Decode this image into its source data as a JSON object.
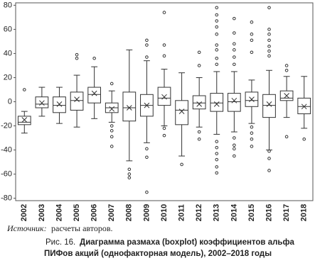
{
  "chart_data": {
    "type": "boxplot",
    "source_label": "Источник:",
    "source_text": "расчеты авторов.",
    "caption_label": "Рис. 16.",
    "caption_lines": [
      "Диаграмма размаха (boxplot) коэффициентов альфа",
      "ПИФов акций (однофакторная модель), 2002–2018 годы"
    ],
    "categories": [
      "2002",
      "2003",
      "2004",
      "2005",
      "2006",
      "2007",
      "2008",
      "2009",
      "2010",
      "2011",
      "2012",
      "2013",
      "2014",
      "2015",
      "2016",
      "2017",
      "2018"
    ],
    "boxes": [
      {
        "min": -26,
        "q1": -19,
        "median": -17,
        "q3": -12,
        "max": -8,
        "mean": -15,
        "outliers": [
          10
        ]
      },
      {
        "min": -12,
        "q1": -5,
        "median": -2,
        "q3": 4,
        "max": 12,
        "mean": -1,
        "outliers": []
      },
      {
        "min": -18,
        "q1": -9,
        "median": -3,
        "q3": 4,
        "max": 12,
        "mean": -2,
        "outliers": []
      },
      {
        "min": -21,
        "q1": -7,
        "median": 1,
        "q3": 8,
        "max": 22,
        "mean": 2,
        "outliers": [
          36,
          39
        ]
      },
      {
        "min": -14,
        "q1": -1,
        "median": 6,
        "q3": 12,
        "max": 29,
        "mean": 7,
        "outliers": [
          36
        ]
      },
      {
        "min": -17,
        "q1": -9,
        "median": -5,
        "q3": -1,
        "max": 9,
        "mean": -6,
        "outliers": [
          15,
          -20,
          -24,
          -29,
          -37
        ]
      },
      {
        "min": -49,
        "q1": -16,
        "median": -5,
        "q3": 8,
        "max": 43,
        "mean": -5,
        "outliers": [
          -56,
          -60,
          -63
        ]
      },
      {
        "min": -34,
        "q1": -12,
        "median": -3,
        "q3": 6,
        "max": 34,
        "mean": -3,
        "outliers": [
          51,
          47,
          37,
          -39,
          -46,
          -75
        ]
      },
      {
        "min": -20,
        "q1": -3,
        "median": 3,
        "q3": 12,
        "max": 27,
        "mean": 4,
        "outliers": [
          74,
          47,
          38,
          -22,
          -28
        ]
      },
      {
        "min": -45,
        "q1": -19,
        "median": -7,
        "q3": 1,
        "max": 24,
        "mean": -8,
        "outliers": [
          -52
        ]
      },
      {
        "min": -21,
        "q1": -6,
        "median": -1,
        "q3": 5,
        "max": 20,
        "mean": -2,
        "outliers": [
          41,
          30,
          -25,
          -31
        ]
      },
      {
        "min": -27,
        "q1": -8,
        "median": -1,
        "q3": 7,
        "max": 25,
        "mean": -2,
        "outliers": [
          78,
          72,
          67,
          62,
          56,
          47,
          43,
          36,
          31,
          -33,
          -38,
          -43,
          -48,
          -54,
          -59
        ]
      },
      {
        "min": -25,
        "q1": -8,
        "median": 0,
        "q3": 7,
        "max": 25,
        "mean": 1,
        "outliers": [
          69,
          57,
          48,
          43,
          37,
          31,
          -30,
          -36,
          -39,
          -45
        ]
      },
      {
        "min": -18,
        "q1": -4,
        "median": 1,
        "q3": 8,
        "max": 18,
        "mean": 2,
        "outliers": [
          66,
          56,
          51,
          41,
          -21,
          -26,
          -31,
          -37
        ]
      },
      {
        "min": -40,
        "q1": -13,
        "median": -3,
        "q3": 6,
        "max": 26,
        "mean": -2,
        "outliers": [
          78,
          60,
          56,
          51,
          46,
          42,
          38,
          -41,
          -47,
          -57
        ]
      },
      {
        "min": -13,
        "q1": 1,
        "median": 3,
        "q3": 9,
        "max": 21,
        "mean": 5,
        "outliers": [
          30,
          26,
          -29
        ]
      },
      {
        "min": -22,
        "q1": -10,
        "median": -4,
        "q3": 3,
        "max": 21,
        "mean": -4,
        "outliers": [
          -31
        ]
      }
    ],
    "ylim": [
      -82,
      82
    ],
    "yticks": [
      -80,
      -60,
      -40,
      -20,
      0,
      20,
      40,
      60,
      80
    ],
    "grid": false
  }
}
